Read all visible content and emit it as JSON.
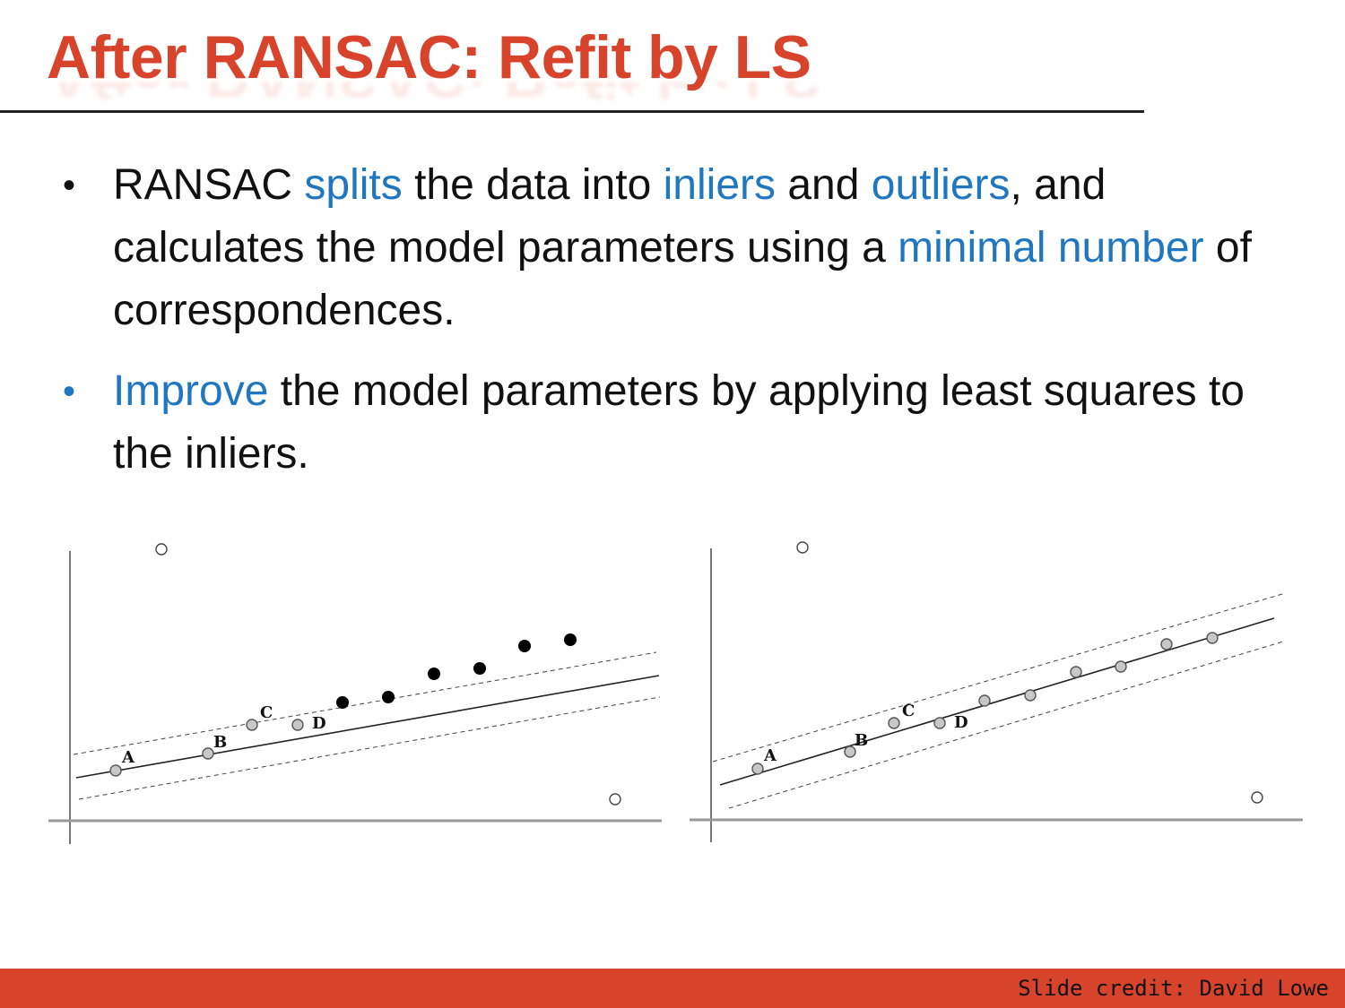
{
  "slide": {
    "title": "After RANSAC: Refit by LS",
    "bullets": [
      [
        {
          "t": "RANSAC ",
          "hl": false
        },
        {
          "t": "splits",
          "hl": true
        },
        {
          "t": " the data into ",
          "hl": false
        },
        {
          "t": "inliers",
          "hl": true
        },
        {
          "t": " and ",
          "hl": false
        },
        {
          "t": "outliers",
          "hl": true
        },
        {
          "t": ", and calculates the model parameters using a ",
          "hl": false
        },
        {
          "t": "minimal number",
          "hl": true
        },
        {
          "t": " of correspondences.",
          "hl": false
        }
      ],
      [
        {
          "t": "Improve",
          "hl": true
        },
        {
          "t": " the model parameters by applying least squares to the inliers.",
          "hl": false
        }
      ]
    ],
    "footer_credit": "Slide credit: David Lowe"
  },
  "colors": {
    "title": "#d8432c",
    "highlight": "#1f77c1",
    "footer_bar": "#d8432c"
  },
  "figures": {
    "left": {
      "labels": [
        "A",
        "B",
        "C",
        "D"
      ]
    },
    "right": {
      "labels": [
        "A",
        "B",
        "C",
        "D"
      ]
    }
  }
}
